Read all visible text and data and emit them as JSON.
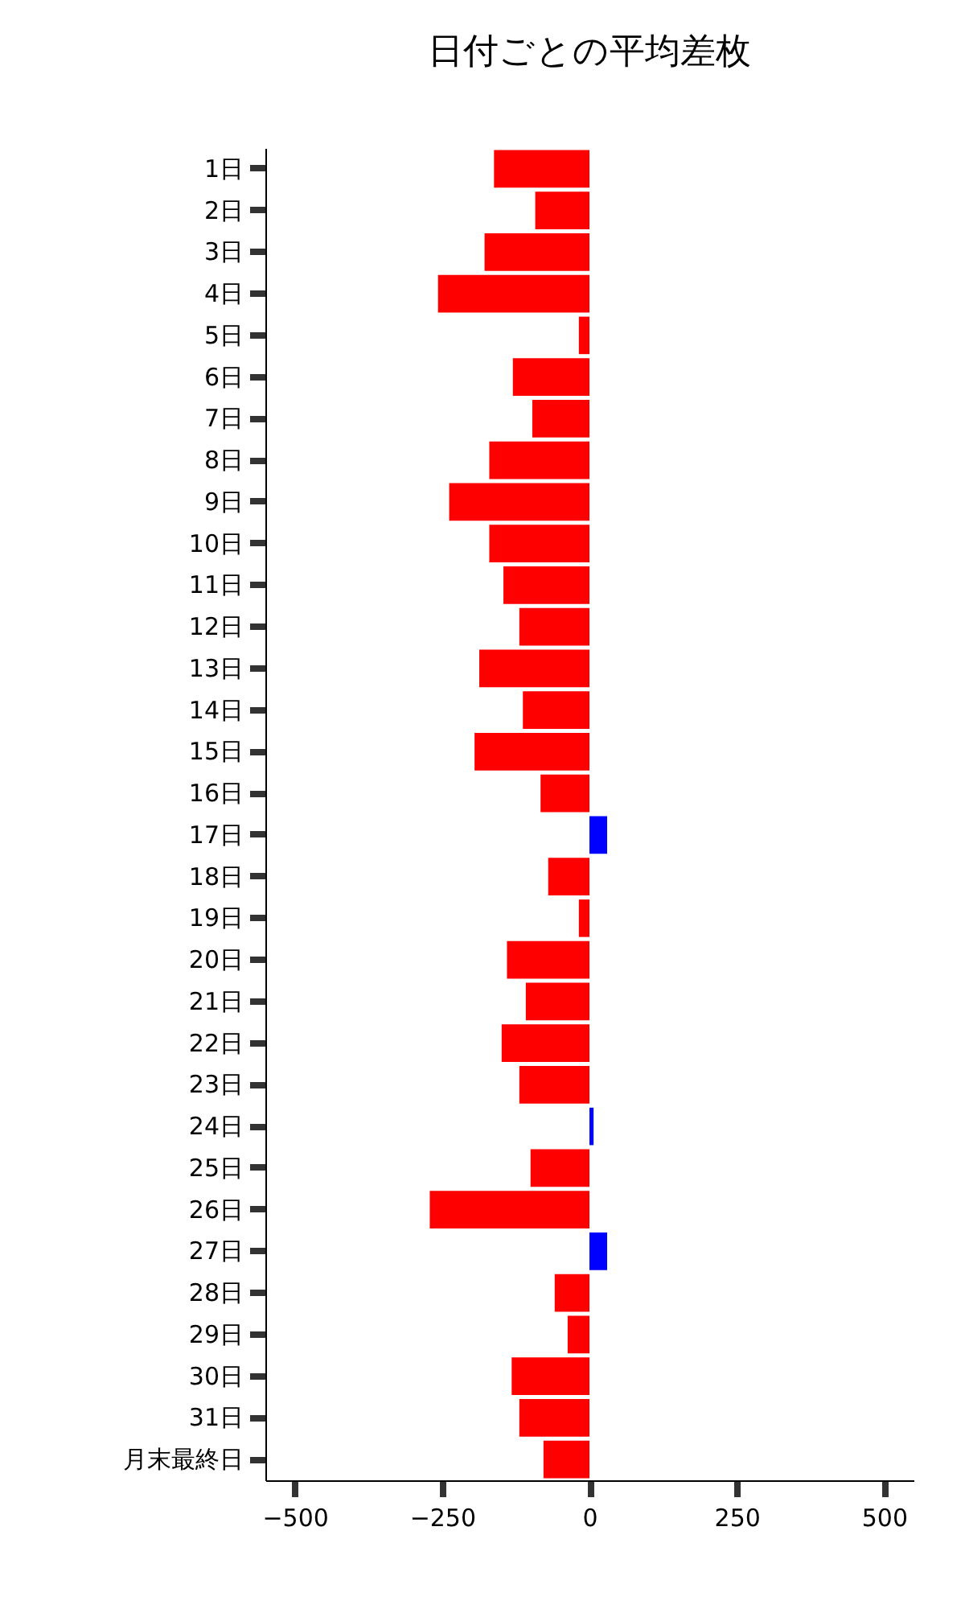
{
  "chart_data": {
    "type": "bar",
    "orientation": "horizontal",
    "title": "日付ごとの平均差枚",
    "categories": [
      "1日",
      "2日",
      "3日",
      "4日",
      "5日",
      "6日",
      "7日",
      "8日",
      "9日",
      "10日",
      "11日",
      "12日",
      "13日",
      "14日",
      "15日",
      "16日",
      "17日",
      "18日",
      "19日",
      "20日",
      "21日",
      "22日",
      "23日",
      "24日",
      "25日",
      "26日",
      "27日",
      "28日",
      "29日",
      "30日",
      "31日",
      "月末最終日"
    ],
    "values": [
      -162,
      -92,
      -178,
      -257,
      -18,
      -130,
      -97,
      -170,
      -238,
      -170,
      -146,
      -119,
      -187,
      -113,
      -195,
      -83,
      30,
      -70,
      -18,
      -140,
      -108,
      -149,
      -119,
      7,
      -100,
      -271,
      30,
      -59,
      -37,
      -132,
      -119,
      -78
    ],
    "colors": [
      "#ff0000",
      "#ff0000",
      "#ff0000",
      "#ff0000",
      "#ff0000",
      "#ff0000",
      "#ff0000",
      "#ff0000",
      "#ff0000",
      "#ff0000",
      "#ff0000",
      "#ff0000",
      "#ff0000",
      "#ff0000",
      "#ff0000",
      "#ff0000",
      "#0000ff",
      "#ff0000",
      "#ff0000",
      "#ff0000",
      "#ff0000",
      "#ff0000",
      "#ff0000",
      "#0000ff",
      "#ff0000",
      "#ff0000",
      "#0000ff",
      "#ff0000",
      "#ff0000",
      "#ff0000",
      "#ff0000",
      "#ff0000"
    ],
    "xlim": [
      -550,
      550
    ],
    "xticks": [
      -500,
      -250,
      0,
      250,
      500
    ],
    "grid": false
  }
}
